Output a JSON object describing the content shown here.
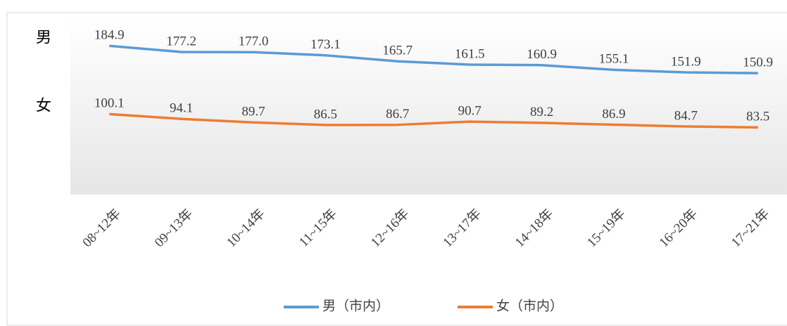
{
  "chart_data": {
    "type": "line",
    "side_labels": [
      "男",
      "女"
    ],
    "categories": [
      "08~12年",
      "09~13年",
      "10~14年",
      "11~15年",
      "12~16年",
      "13~17年",
      "14~18年",
      "15~19年",
      "16~20年",
      "17~21年"
    ],
    "series": [
      {
        "name": "男（市内）",
        "color": "#5b9bd5",
        "values": [
          184.9,
          177.2,
          177.0,
          173.1,
          165.7,
          161.5,
          160.9,
          155.1,
          151.9,
          150.9
        ],
        "value_labels": [
          "184.9",
          "177.2",
          "177.0",
          "173.1",
          "165.7",
          "161.5",
          "160.9",
          "155.1",
          "151.9",
          "150.9"
        ]
      },
      {
        "name": "女（市内）",
        "color": "#ed7d31",
        "values": [
          100.1,
          94.1,
          89.7,
          86.5,
          86.7,
          90.7,
          89.2,
          86.9,
          84.7,
          83.5
        ],
        "value_labels": [
          "100.1",
          "94.1",
          "89.7",
          "86.5",
          "86.7",
          "90.7",
          "89.2",
          "86.9",
          "84.7",
          "83.5"
        ]
      }
    ],
    "ylim": [
      0,
      220
    ],
    "legend": "bottom"
  }
}
